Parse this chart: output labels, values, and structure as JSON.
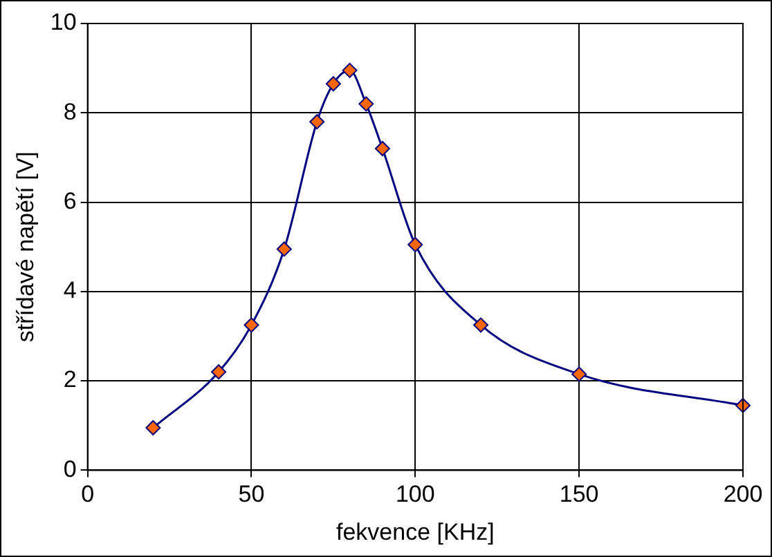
{
  "chart_data": {
    "type": "line",
    "xlabel": "fekvence [KHz]",
    "ylabel": "střídavé napětí [V]",
    "x": [
      20,
      40,
      50,
      60,
      70,
      75,
      80,
      85,
      90,
      100,
      120,
      150,
      200
    ],
    "series": [
      {
        "color": "#000080",
        "values": [
          0.95,
          2.2,
          3.25,
          4.95,
          7.8,
          8.65,
          8.95,
          8.2,
          7.2,
          5.05,
          3.25,
          2.15,
          1.45
        ]
      }
    ],
    "xlim": [
      0,
      200
    ],
    "xticks": [
      0,
      50,
      100,
      150,
      200
    ],
    "ylim": [
      0,
      10
    ],
    "yticks": [
      0,
      2,
      4,
      6,
      8,
      10
    ],
    "grid": true,
    "legend": false,
    "marker": "diamond",
    "line_style": "solid"
  }
}
